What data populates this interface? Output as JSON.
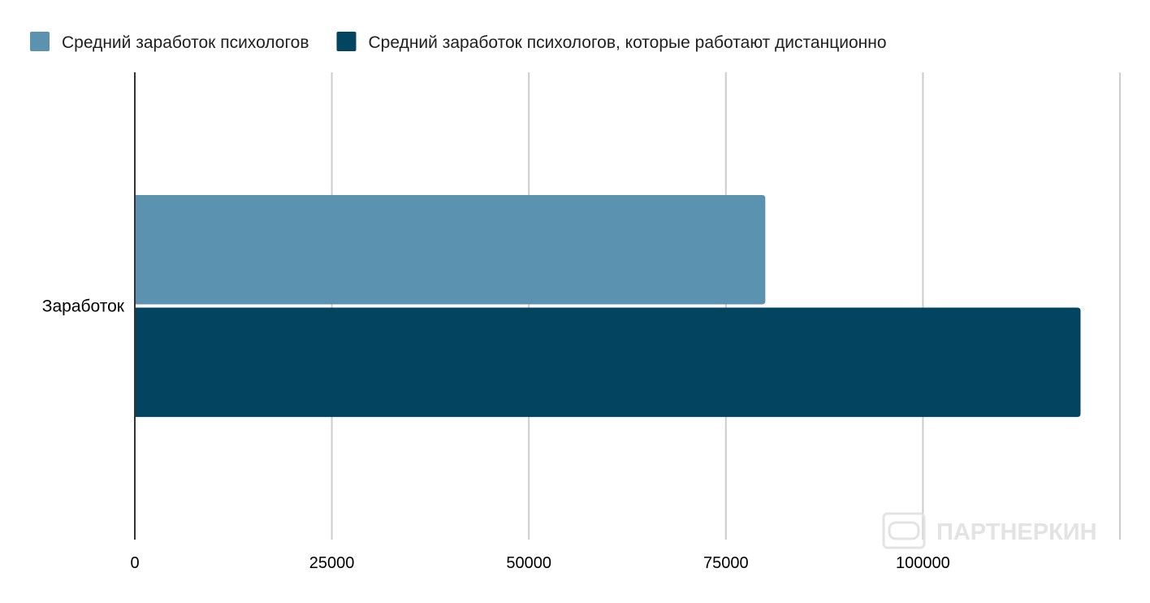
{
  "chart_data": {
    "type": "bar",
    "orientation": "horizontal",
    "categories": [
      "Заработок"
    ],
    "series": [
      {
        "name": "Средний заработок психологов",
        "values": [
          80000
        ],
        "color": "#5a92af"
      },
      {
        "name": "Средний заработок психологов, которые работают дистанционно",
        "values": [
          120000
        ],
        "color": "#034460"
      }
    ],
    "xlim": [
      0,
      125000
    ],
    "x_ticks": [
      "0",
      "25000",
      "50000",
      "75000",
      "100000"
    ],
    "grid": true,
    "legend_position": "top-left"
  },
  "watermark": {
    "text": "ПАРТНЕРКИН",
    "icon": "vr-headset-icon",
    "color": "#e3e3e3"
  }
}
